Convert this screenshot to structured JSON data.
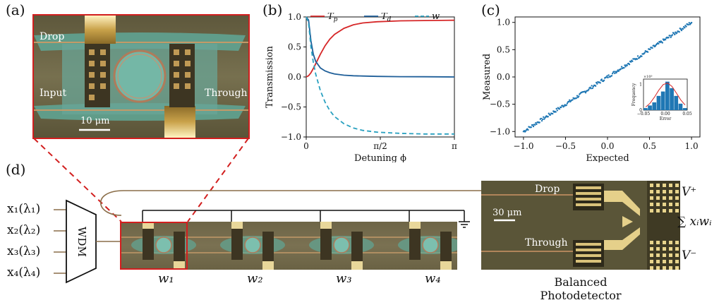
{
  "panel_a": {
    "tag": "(a)",
    "labels": {
      "drop": "Drop",
      "input": "Input",
      "through": "Through"
    },
    "scalebar": "10 μm"
  },
  "panel_b": {
    "tag": "(b)"
  },
  "panel_c": {
    "tag": "(c)"
  },
  "panel_d": {
    "tag": "(d)",
    "inputs": [
      "x₁(λ₁)",
      "x₂(λ₂)",
      "x₃(λ₃)",
      "x₄(λ₄)"
    ],
    "wdm": "WDM",
    "weights": [
      "w₁",
      "w₂",
      "w₃",
      "w₄"
    ],
    "pd_labels": {
      "drop": "Drop",
      "through": "Through"
    },
    "scalebar": "30 μm",
    "vplus": "V⁺",
    "vminus": "V⁻",
    "sum": "∑ xᵢwᵢ",
    "caption_line1": "Balanced",
    "caption_line2": "Photodetector"
  },
  "chart_data": [
    {
      "type": "line",
      "panel": "b",
      "xlabel": "Detuning ϕ",
      "ylabel": "Transmission",
      "xlim": [
        0,
        3.1416
      ],
      "ylim": [
        -1.0,
        1.0
      ],
      "x_ticks": [
        "0",
        "π/2",
        "π"
      ],
      "y_ticks": [
        "−1.0",
        "−0.5",
        "0.0",
        "0.5",
        "1.0"
      ],
      "legend": "top",
      "series": [
        {
          "name": "Tp",
          "color": "#d62728",
          "dash": "solid",
          "x": [
            0,
            0.05,
            0.1,
            0.15,
            0.2,
            0.3,
            0.4,
            0.5,
            0.6,
            0.8,
            1.0,
            1.2,
            1.5,
            2.0,
            2.5,
            3.1416
          ],
          "y": [
            0.0,
            0.02,
            0.07,
            0.14,
            0.22,
            0.38,
            0.52,
            0.63,
            0.71,
            0.81,
            0.87,
            0.9,
            0.92,
            0.935,
            0.94,
            0.945
          ]
        },
        {
          "name": "Td",
          "color": "#1f5f99",
          "dash": "solid",
          "x": [
            0,
            0.05,
            0.1,
            0.15,
            0.2,
            0.3,
            0.4,
            0.5,
            0.6,
            0.8,
            1.0,
            1.2,
            1.5,
            2.0,
            2.5,
            3.1416
          ],
          "y": [
            1.0,
            0.95,
            0.6,
            0.38,
            0.26,
            0.15,
            0.1,
            0.07,
            0.05,
            0.03,
            0.02,
            0.015,
            0.01,
            0.005,
            0.003,
            0.0
          ]
        },
        {
          "name": "w",
          "color": "#2aa1c0",
          "dash": "dashed",
          "x": [
            0,
            0.05,
            0.1,
            0.15,
            0.2,
            0.3,
            0.4,
            0.5,
            0.6,
            0.8,
            1.0,
            1.2,
            1.5,
            2.0,
            2.5,
            3.1416
          ],
          "y": [
            1.0,
            0.9,
            0.5,
            0.25,
            0.05,
            -0.23,
            -0.42,
            -0.56,
            -0.66,
            -0.78,
            -0.85,
            -0.89,
            -0.92,
            -0.94,
            -0.95,
            -0.95
          ]
        }
      ]
    },
    {
      "type": "scatter",
      "panel": "c",
      "xlabel": "Expected",
      "ylabel": "Measured",
      "xlim": [
        -1.1,
        1.1
      ],
      "ylim": [
        -1.1,
        1.1
      ],
      "x_ticks": [
        "−1.0",
        "−0.5",
        "0.0",
        "0.5",
        "1.0"
      ],
      "y_ticks": [
        "−1.0",
        "−0.5",
        "0.0",
        "0.5",
        "1.0"
      ],
      "color": "#1f77b4",
      "slope": 1.0,
      "range": [
        -1.0,
        1.0
      ]
    },
    {
      "type": "bar",
      "panel": "c-inset",
      "xlabel": "Error",
      "ylabel": "Frequency",
      "multiplier": "×10³",
      "x_ticks": [
        "−0.05",
        "0.00",
        "0.05"
      ],
      "y_ticks": [
        "0",
        "1"
      ],
      "bins": [
        -0.05,
        -0.04,
        -0.03,
        -0.02,
        -0.01,
        0.0,
        0.01,
        0.02,
        0.03,
        0.04
      ],
      "values": [
        0.08,
        0.18,
        0.3,
        0.55,
        0.72,
        1.1,
        0.85,
        0.55,
        0.25,
        0.08
      ],
      "ylim": [
        0,
        1.2
      ],
      "fit_color": "#d62728"
    }
  ]
}
